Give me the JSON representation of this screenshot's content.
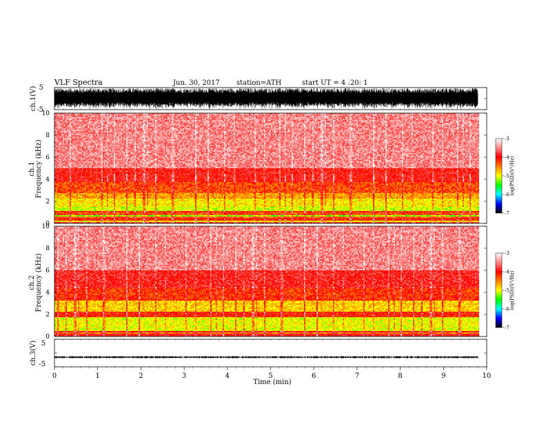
{
  "header": {
    "title": "VLF  Spectra",
    "date": "Jun. 30, 2017",
    "station": "station=ATH",
    "start": "start  UT  =   4  :20: 1"
  },
  "chart_data": [
    {
      "type": "line",
      "name": "ch1-waveform",
      "ylabel": "ch.1(V)",
      "ylim": [
        -5,
        5
      ],
      "yticks": [
        "5",
        "-5"
      ],
      "x_range_min": [
        0,
        9.8
      ],
      "amplitude_v": 4.7
    },
    {
      "type": "heatmap",
      "name": "ch1-spectrogram",
      "ylabel": "ch.1",
      "ylabel2": "Frequency  (kHz)",
      "ylim_khz": [
        0,
        10
      ],
      "yticks": [
        "0",
        "2",
        "4",
        "6",
        "8",
        "10"
      ],
      "x_range_min": [
        0,
        9.8
      ],
      "bands_khz": [
        {
          "from": 0.0,
          "to": 0.15,
          "level": -3.8
        },
        {
          "from": 0.15,
          "to": 0.3,
          "level": -5.0
        },
        {
          "from": 0.3,
          "to": 0.45,
          "level": -4.1
        },
        {
          "from": 0.45,
          "to": 0.6,
          "level": -4.4
        },
        {
          "from": 0.6,
          "to": 0.75,
          "level": -5.2
        },
        {
          "from": 0.75,
          "to": 1.0,
          "level": -4.3
        },
        {
          "from": 1.0,
          "to": 1.15,
          "level": -4.0
        },
        {
          "from": 1.15,
          "to": 1.5,
          "level": -5.1
        },
        {
          "from": 1.5,
          "to": 2.2,
          "level": -4.9
        },
        {
          "from": 2.2,
          "to": 2.8,
          "level": -4.6
        },
        {
          "from": 2.8,
          "to": 3.8,
          "level": -4.3
        },
        {
          "from": 3.8,
          "to": 5.0,
          "level": -3.95
        },
        {
          "from": 5.0,
          "to": 10.0,
          "level": -3.5
        }
      ],
      "colorbar": {
        "label": "log(PSD)(V²/Hz)",
        "ticks": [
          "-3",
          "-4",
          "-5",
          "-6",
          "-7"
        ],
        "range": [
          -7,
          -3
        ]
      }
    },
    {
      "type": "heatmap",
      "name": "ch2-spectrogram",
      "ylabel": "ch.2",
      "ylabel2": "Frequency  (kHz)",
      "ylim_khz": [
        0,
        10
      ],
      "yticks": [
        "0",
        "2",
        "4",
        "6",
        "8",
        "10"
      ],
      "x_range_min": [
        0,
        9.8
      ],
      "bands_khz": [
        {
          "from": 0.0,
          "to": 0.2,
          "level": -4.0
        },
        {
          "from": 0.2,
          "to": 0.4,
          "level": -4.5
        },
        {
          "from": 0.4,
          "to": 0.55,
          "level": -4.0
        },
        {
          "from": 0.55,
          "to": 1.8,
          "level": -5.0
        },
        {
          "from": 1.8,
          "to": 2.2,
          "level": -4.1
        },
        {
          "from": 2.2,
          "to": 3.2,
          "level": -4.8
        },
        {
          "from": 3.2,
          "to": 4.4,
          "level": -4.2
        },
        {
          "from": 4.4,
          "to": 6.0,
          "level": -3.9
        },
        {
          "from": 6.0,
          "to": 10.0,
          "level": -3.5
        }
      ],
      "colorbar": {
        "label": "log(PSD)(V²/Hz)",
        "ticks": [
          "-3",
          "-4",
          "-5",
          "-6",
          "-7"
        ],
        "range": [
          -7,
          -3
        ]
      }
    },
    {
      "type": "line",
      "name": "ch3-waveform",
      "ylabel": "ch.3(V)",
      "ylim": [
        -5,
        5
      ],
      "yticks": [
        "5",
        "-5"
      ],
      "x_range_min": [
        0,
        9.8
      ],
      "level_v": -1.5,
      "amplitude_v": 0.4
    }
  ],
  "xaxis": {
    "label": "Time  (min)",
    "ticks": [
      "0",
      "1",
      "2",
      "3",
      "4",
      "5",
      "6",
      "7",
      "8",
      "9",
      "10"
    ],
    "range": [
      0,
      10
    ]
  },
  "colors": {
    "colormap": [
      "#000000",
      "#0000ff",
      "#00ffff",
      "#00ff00",
      "#ffff00",
      "#ff8000",
      "#ff0000",
      "#ff8888",
      "#ffffff"
    ]
  }
}
